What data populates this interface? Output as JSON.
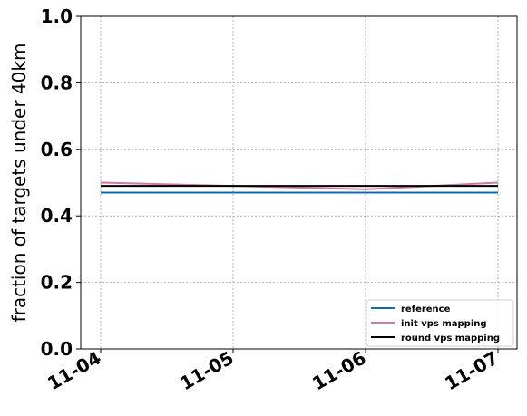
{
  "chart_data": {
    "type": "line",
    "x": [
      "11-04",
      "11-05",
      "11-06",
      "11-07"
    ],
    "ylabel": "fraction of targets under 40km",
    "ylim": [
      0,
      1
    ],
    "yticks": [
      "0.0",
      "0.2",
      "0.4",
      "0.6",
      "0.8",
      "1.0"
    ],
    "grid": true,
    "legend_position": "bottom-right",
    "series": [
      {
        "name": "reference",
        "color": "#0f6cb0",
        "values": [
          0.47,
          0.47,
          0.47,
          0.47
        ]
      },
      {
        "name": "init vps mapping",
        "color": "#cc79a7",
        "values": [
          0.5,
          0.49,
          0.48,
          0.5
        ]
      },
      {
        "name": "round vps mapping",
        "color": "#000000",
        "values": [
          0.49,
          0.49,
          0.49,
          0.49
        ]
      }
    ]
  }
}
